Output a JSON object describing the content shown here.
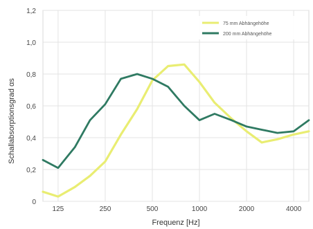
{
  "chart_data": {
    "type": "line",
    "xlabel": "Frequenz [Hz]",
    "ylabel": "Schallabsorptionsgrad αs",
    "categories": [
      "125",
      "250",
      "500",
      "1000",
      "2000",
      "4000"
    ],
    "x_scale": "log",
    "x_categories_values": [
      125,
      250,
      500,
      1000,
      2000,
      4000
    ],
    "xlim": [
      100,
      5000
    ],
    "ylim": [
      0,
      1.2
    ],
    "y_ticks": [
      "0",
      "0,2",
      "0,4",
      "0,6",
      "0,8",
      "1,0",
      "1,2"
    ],
    "y_tick_values": [
      0,
      0.2,
      0.4,
      0.6,
      0.8,
      1.0,
      1.2
    ],
    "grid": true,
    "legend_position": "top-right",
    "series": [
      {
        "name": "75 mm Abhängehöhe",
        "color": "#e9ed72",
        "points": [
          [
            100,
            0.06
          ],
          [
            125,
            0.03
          ],
          [
            160,
            0.09
          ],
          [
            200,
            0.16
          ],
          [
            250,
            0.25
          ],
          [
            315,
            0.42
          ],
          [
            400,
            0.58
          ],
          [
            500,
            0.76
          ],
          [
            630,
            0.85
          ],
          [
            800,
            0.86
          ],
          [
            1000,
            0.75
          ],
          [
            1250,
            0.62
          ],
          [
            1600,
            0.52
          ],
          [
            2000,
            0.44
          ],
          [
            2500,
            0.37
          ],
          [
            3150,
            0.39
          ],
          [
            4000,
            0.42
          ],
          [
            5000,
            0.44
          ]
        ]
      },
      {
        "name": "200 mm Abhängehöhe",
        "color": "#2f7a62",
        "points": [
          [
            100,
            0.26
          ],
          [
            125,
            0.21
          ],
          [
            160,
            0.34
          ],
          [
            200,
            0.51
          ],
          [
            250,
            0.61
          ],
          [
            315,
            0.77
          ],
          [
            400,
            0.8
          ],
          [
            500,
            0.77
          ],
          [
            630,
            0.72
          ],
          [
            800,
            0.6
          ],
          [
            1000,
            0.51
          ],
          [
            1250,
            0.55
          ],
          [
            1600,
            0.51
          ],
          [
            2000,
            0.47
          ],
          [
            2500,
            0.45
          ],
          [
            3150,
            0.43
          ],
          [
            4000,
            0.44
          ],
          [
            5000,
            0.51
          ]
        ]
      }
    ]
  }
}
